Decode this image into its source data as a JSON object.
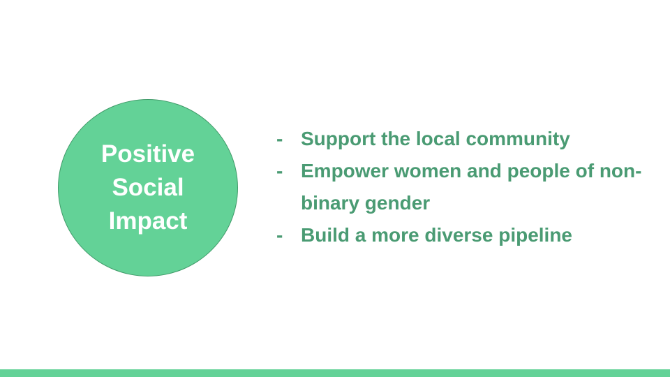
{
  "circle": {
    "label": "Positive\nSocial\nImpact",
    "fill_color": "#63d297"
  },
  "bullets": {
    "marker": "-",
    "items": [
      "Support the local community",
      "Empower women and people of non-binary gender",
      "Build a more diverse pipeline"
    ],
    "text_color": "#4a9b73"
  },
  "footer_bar": {
    "color": "#63d297"
  }
}
